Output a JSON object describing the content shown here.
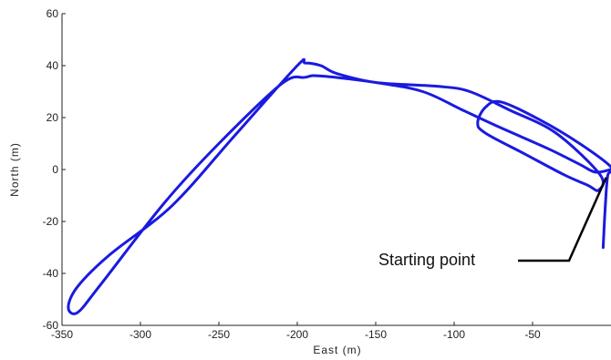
{
  "chart_data": {
    "type": "line",
    "title": "",
    "xlabel": "East (m)",
    "ylabel": "North (m)",
    "xlim": [
      -350,
      0
    ],
    "ylim": [
      -60,
      60
    ],
    "x_ticks": [
      -350,
      -300,
      -250,
      -200,
      -150,
      -100,
      -50
    ],
    "y_ticks": [
      60,
      40,
      20,
      0,
      -20,
      -40,
      -60
    ],
    "grid": false,
    "series": [
      {
        "color": "#1a1adf",
        "points": [
          [
            -5,
            -30
          ],
          [
            -4,
            -18
          ],
          [
            -3,
            -8
          ],
          [
            -2,
            -2
          ],
          [
            0,
            1
          ],
          [
            -20,
            10
          ],
          [
            -45,
            19
          ],
          [
            -70,
            26
          ],
          [
            -80,
            24
          ],
          [
            -85,
            18
          ],
          [
            -80,
            14
          ],
          [
            -55,
            6
          ],
          [
            -30,
            -2
          ],
          [
            -15,
            -6
          ],
          [
            -8,
            -8
          ],
          [
            -7,
            -2
          ],
          [
            -35,
            14
          ],
          [
            -65,
            23
          ],
          [
            -90,
            30
          ],
          [
            -110,
            32
          ],
          [
            -150,
            33.5
          ],
          [
            -175,
            37
          ],
          [
            -185,
            40
          ],
          [
            -195,
            41
          ],
          [
            -200,
            40
          ],
          [
            -240,
            13
          ],
          [
            -280,
            -14
          ],
          [
            -320,
            -33
          ],
          [
            -340,
            -45
          ],
          [
            -346,
            -53
          ],
          [
            -340,
            -55
          ],
          [
            -325,
            -44
          ],
          [
            -285,
            -13
          ],
          [
            -250,
            10
          ],
          [
            -210,
            33
          ],
          [
            -195,
            35.5
          ],
          [
            -185,
            36
          ],
          [
            -150,
            33.5
          ],
          [
            -120,
            30
          ],
          [
            -95,
            23
          ],
          [
            -70,
            16
          ],
          [
            -40,
            8
          ],
          [
            -20,
            2
          ],
          [
            -10,
            -1
          ],
          [
            0,
            0
          ]
        ]
      }
    ],
    "annotations": [
      {
        "text": "Starting point",
        "target": [
          -3,
          -3
        ]
      }
    ]
  }
}
